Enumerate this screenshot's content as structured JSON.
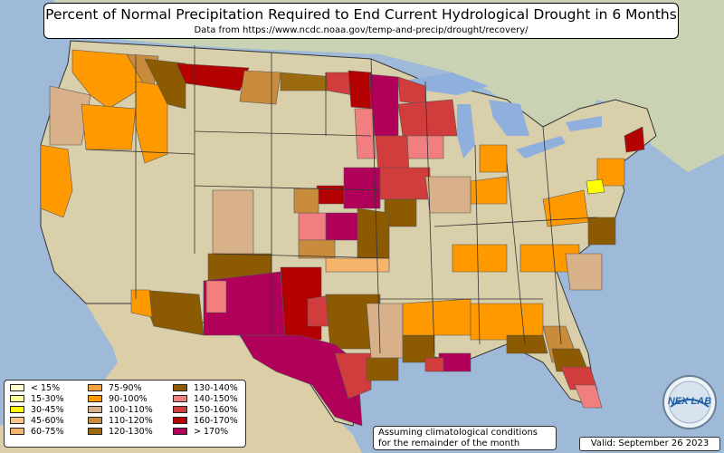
{
  "title": "Percent of Normal Precipitation Required to End Current Hydrological Drought in 6 Months",
  "subtitle": "Data from https://www.ncdc.noaa.gov/temp-and-precip/drought/recovery/",
  "note_line1": "Assuming climatological conditions",
  "note_line2": "for the remainder of the month",
  "valid": "Valid: September 26 2023",
  "logo_text": "NEX LAB",
  "colors": {
    "ocean": "#9fb9d9",
    "land_canada": "#c9d3b4",
    "land_mexico": "#dccfa8",
    "great_lakes": "#8fb0dc",
    "state_border": "#333333"
  },
  "legend": [
    {
      "label": "< 15%",
      "color": "#ffffd2"
    },
    {
      "label": "15-30%",
      "color": "#ffffa0"
    },
    {
      "label": "30-45%",
      "color": "#ffff00"
    },
    {
      "label": "45-60%",
      "color": "#f5c78a"
    },
    {
      "label": "60-75%",
      "color": "#f6b46b"
    },
    {
      "label": "75-90%",
      "color": "#f9a23c"
    },
    {
      "label": "90-100%",
      "color": "#ff9900"
    },
    {
      "label": "100-110%",
      "color": "#d8b08a"
    },
    {
      "label": "110-120%",
      "color": "#c98c3d"
    },
    {
      "label": "120-130%",
      "color": "#9c6a0e"
    },
    {
      "label": "130-140%",
      "color": "#8c5a00"
    },
    {
      "label": "140-150%",
      "color": "#f27f7f"
    },
    {
      "label": "150-160%",
      "color": "#d13c3c"
    },
    {
      "label": "160-170%",
      "color": "#b30000"
    },
    {
      "label": "> 170%",
      "color": "#b0005a"
    }
  ]
}
